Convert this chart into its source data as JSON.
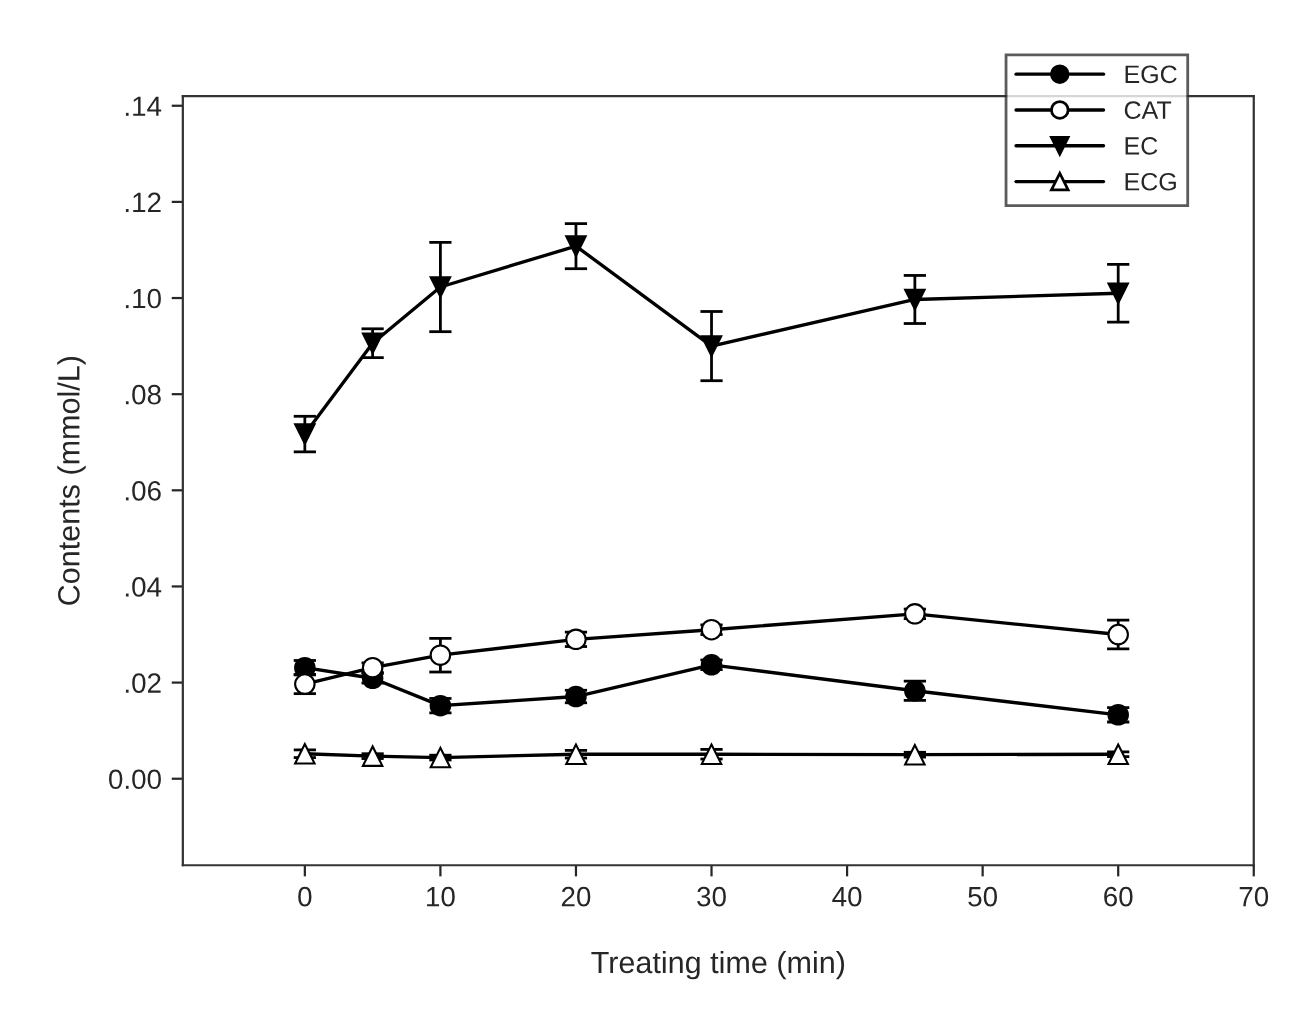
{
  "chart_data": {
    "type": "line",
    "xlabel": "Treating time (min)",
    "ylabel": "Contents (mmol/L)",
    "x": [
      0,
      5,
      10,
      20,
      30,
      45,
      60
    ],
    "series": [
      {
        "name": "EGC",
        "color": "#000000",
        "marker": "circle",
        "values": [
          0.0231,
          0.0209,
          0.0152,
          0.0171,
          0.0237,
          0.0183,
          0.0133
        ],
        "errors": [
          0.0015,
          0.001,
          0.0015,
          0.0013,
          0.001,
          0.002,
          0.0015
        ]
      },
      {
        "name": "CAT",
        "color": "#000000",
        "marker": "circle",
        "values": [
          0.0197,
          0.0231,
          0.0257,
          0.029,
          0.031,
          0.0343,
          0.03
        ],
        "errors": [
          0.002,
          0.001,
          0.0035,
          0.0015,
          0.001,
          0.001,
          0.003
        ]
      },
      {
        "name": "EC",
        "color": "#000000",
        "marker": "triangle",
        "values": [
          0.0717,
          0.0906,
          0.1023,
          0.1108,
          0.09,
          0.0997,
          0.101
        ],
        "errors": [
          0.0037,
          0.003,
          0.0093,
          0.0047,
          0.0072,
          0.005,
          0.006
        ]
      },
      {
        "name": "ECG",
        "color": "#000000",
        "marker": "triangle",
        "values": [
          0.0052,
          0.0047,
          0.0044,
          0.0051,
          0.0051,
          0.005,
          0.0051
        ],
        "errors": [
          0.0008,
          0.0005,
          0.0005,
          0.0008,
          0.001,
          0.0005,
          0.0005
        ]
      }
    ],
    "xlim": [
      -9,
      70
    ],
    "xticks": [
      0,
      10,
      20,
      30,
      40,
      50,
      60,
      70
    ],
    "ylim": [
      -0.018,
      0.142
    ],
    "yticks": [
      {
        "value": 0,
        "label": "0.00"
      },
      {
        "value": 0.02,
        "label": ".02"
      },
      {
        "value": 0.04,
        "label": ".04"
      },
      {
        "value": 0.06,
        "label": ".06"
      },
      {
        "value": 0.08,
        "label": ".08"
      },
      {
        "value": 0.1,
        "label": ".10"
      },
      {
        "value": 0.12,
        "label": ".12"
      },
      {
        "value": 0.14,
        "label": ".14"
      }
    ],
    "grid": false,
    "legend": "top right"
  }
}
